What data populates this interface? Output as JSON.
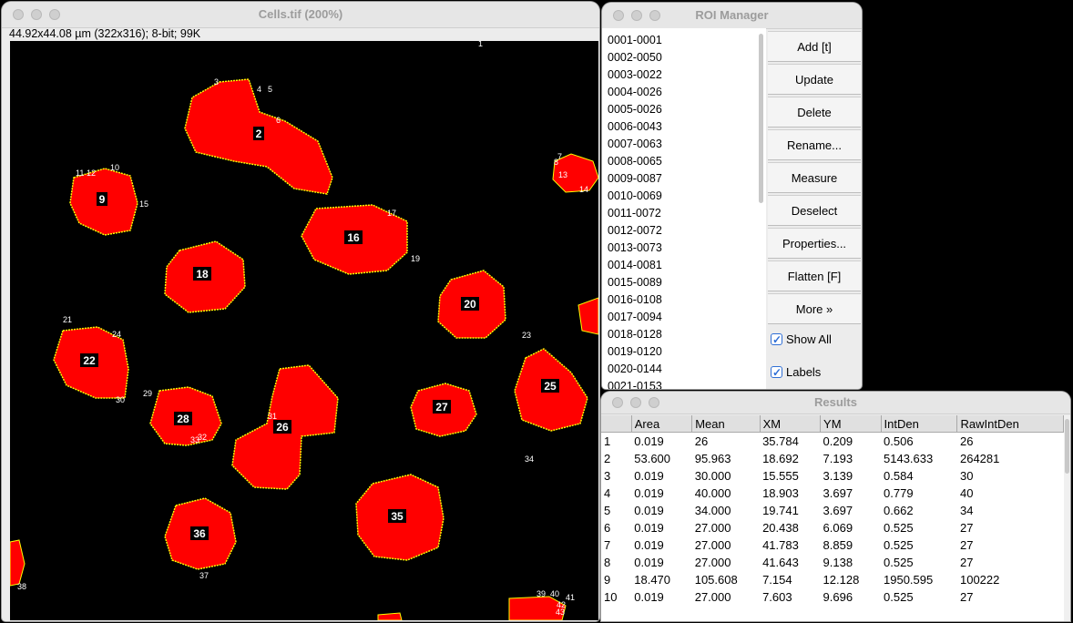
{
  "image_window": {
    "title": "Cells.tif (200%)",
    "info": "44.92x44.08 µm (322x316); 8-bit; 99K",
    "cell_labels": [
      "2",
      "9",
      "16",
      "18",
      "20",
      "22",
      "25",
      "26",
      "27",
      "28",
      "35",
      "36"
    ],
    "small_labels": [
      "1",
      "3",
      "4",
      "5",
      "6",
      "7",
      "8",
      "10",
      "11",
      "12",
      "13",
      "14",
      "15",
      "17",
      "19",
      "21",
      "23",
      "24",
      "29",
      "30",
      "31",
      "32",
      "33",
      "34",
      "37",
      "38",
      "39",
      "40",
      "41",
      "42",
      "43"
    ],
    "colors": {
      "cell_fill": "#ff0000",
      "cell_outline": "#ffff00",
      "label_bg": "#000000",
      "label_text": "#ffffff"
    }
  },
  "roi_manager": {
    "title": "ROI Manager",
    "items": [
      "0001-0001",
      "0002-0050",
      "0003-0022",
      "0004-0026",
      "0005-0026",
      "0006-0043",
      "0007-0063",
      "0008-0065",
      "0009-0087",
      "0010-0069",
      "0011-0072",
      "0012-0072",
      "0013-0073",
      "0014-0081",
      "0015-0089",
      "0016-0108",
      "0017-0094",
      "0018-0128",
      "0019-0120",
      "0020-0144",
      "0021-0153"
    ],
    "buttons": [
      "Add [t]",
      "Update",
      "Delete",
      "Rename...",
      "Measure",
      "Deselect",
      "Properties...",
      "Flatten [F]",
      "More »"
    ],
    "show_all_label": "Show All",
    "labels_label": "Labels"
  },
  "results": {
    "title": "Results",
    "columns": [
      "",
      "Area",
      "Mean",
      "XM",
      "YM",
      "IntDen",
      "RawIntDen"
    ],
    "rows": [
      [
        "1",
        "0.019",
        "26",
        "35.784",
        "0.209",
        "0.506",
        "26"
      ],
      [
        "2",
        "53.600",
        "95.963",
        "18.692",
        "7.193",
        "5143.633",
        "264281"
      ],
      [
        "3",
        "0.019",
        "30.000",
        "15.555",
        "3.139",
        "0.584",
        "30"
      ],
      [
        "4",
        "0.019",
        "40.000",
        "18.903",
        "3.697",
        "0.779",
        "40"
      ],
      [
        "5",
        "0.019",
        "34.000",
        "19.741",
        "3.697",
        "0.662",
        "34"
      ],
      [
        "6",
        "0.019",
        "27.000",
        "20.438",
        "6.069",
        "0.525",
        "27"
      ],
      [
        "7",
        "0.019",
        "27.000",
        "41.783",
        "8.859",
        "0.525",
        "27"
      ],
      [
        "8",
        "0.019",
        "27.000",
        "41.643",
        "9.138",
        "0.525",
        "27"
      ],
      [
        "9",
        "18.470",
        "105.608",
        "7.154",
        "12.128",
        "1950.595",
        "100222"
      ],
      [
        "10",
        "0.019",
        "27.000",
        "7.603",
        "9.696",
        "0.525",
        "27"
      ]
    ]
  }
}
